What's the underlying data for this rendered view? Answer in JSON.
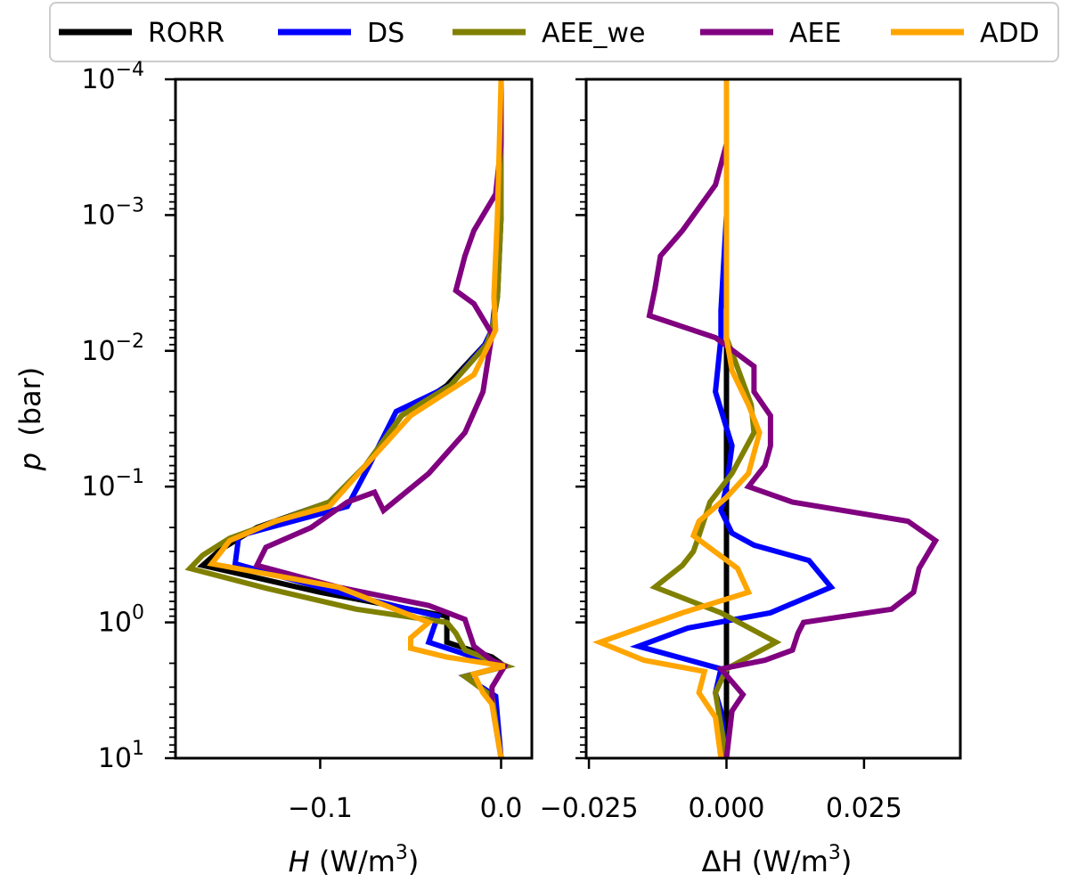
{
  "legend": [
    {
      "name": "RORR",
      "color": "#000000"
    },
    {
      "name": "DS",
      "color": "#0000ff"
    },
    {
      "name": "AEE_we",
      "color": "#808000"
    },
    {
      "name": "AEE",
      "color": "#800080"
    },
    {
      "name": "ADD",
      "color": "#ffa500"
    }
  ],
  "yaxis": {
    "label_var": "p",
    "label_unit": "(bar)",
    "scale": "log",
    "inverted": true,
    "ylim": [
      0.0001,
      10
    ],
    "ticks": [
      {
        "value": 0.0001,
        "base": "10",
        "exp": "−4"
      },
      {
        "value": 0.001,
        "base": "10",
        "exp": "−3"
      },
      {
        "value": 0.01,
        "base": "10",
        "exp": "−2"
      },
      {
        "value": 0.1,
        "base": "10",
        "exp": "−1"
      },
      {
        "value": 1,
        "base": "10",
        "exp": "0"
      },
      {
        "value": 10,
        "base": "10",
        "exp": "1"
      }
    ]
  },
  "chart_data": [
    {
      "type": "line",
      "id": "left",
      "xlabel_var": "H",
      "xlabel_unit": " (W/m",
      "xlabel_exp": "3",
      "xlabel_close": ")",
      "xlim": [
        -0.18,
        0.017
      ],
      "xticks": [
        {
          "value": -0.1,
          "label": "−0.1"
        },
        {
          "value": 0.0,
          "label": "0.0"
        }
      ],
      "series": [
        {
          "name": "RORR",
          "points": [
            [
              0.0,
              0.0001
            ],
            [
              0.0,
              0.001
            ],
            [
              -0.002,
              0.004
            ],
            [
              -0.005,
              0.007
            ],
            [
              -0.009,
              0.009
            ],
            [
              -0.03,
              0.018
            ],
            [
              -0.055,
              0.03
            ],
            [
              -0.075,
              0.07
            ],
            [
              -0.095,
              0.13
            ],
            [
              -0.135,
              0.2
            ],
            [
              -0.155,
              0.29
            ],
            [
              -0.165,
              0.38
            ],
            [
              -0.1,
              0.6
            ],
            [
              -0.03,
              0.9
            ],
            [
              -0.03,
              1.1
            ],
            [
              -0.03,
              1.4
            ],
            [
              -0.005,
              1.8
            ],
            [
              0.002,
              2.1
            ],
            [
              -0.02,
              2.5
            ],
            [
              -0.005,
              3.5
            ],
            [
              0.0,
              10
            ]
          ]
        },
        {
          "name": "DS",
          "points": [
            [
              0.0,
              0.0001
            ],
            [
              0.0,
              0.001
            ],
            [
              -0.003,
              0.004
            ],
            [
              -0.005,
              0.007
            ],
            [
              -0.009,
              0.009
            ],
            [
              -0.028,
              0.018
            ],
            [
              -0.058,
              0.028
            ],
            [
              -0.073,
              0.07
            ],
            [
              -0.085,
              0.14
            ],
            [
              -0.145,
              0.23
            ],
            [
              -0.147,
              0.37
            ],
            [
              -0.09,
              0.6
            ],
            [
              -0.035,
              0.9
            ],
            [
              -0.04,
              1.4
            ],
            [
              -0.015,
              1.8
            ],
            [
              0.002,
              2.1
            ],
            [
              -0.02,
              2.5
            ],
            [
              -0.003,
              3.5
            ],
            [
              0.0,
              10
            ]
          ]
        },
        {
          "name": "AEE_we",
          "points": [
            [
              0.0,
              0.0001
            ],
            [
              0.0,
              0.001
            ],
            [
              -0.002,
              0.004
            ],
            [
              -0.005,
              0.007
            ],
            [
              -0.008,
              0.009
            ],
            [
              -0.028,
              0.018
            ],
            [
              -0.055,
              0.03
            ],
            [
              -0.075,
              0.07
            ],
            [
              -0.095,
              0.13
            ],
            [
              -0.15,
              0.24
            ],
            [
              -0.165,
              0.32
            ],
            [
              -0.172,
              0.4
            ],
            [
              -0.13,
              0.56
            ],
            [
              -0.08,
              0.8
            ],
            [
              -0.03,
              1.0
            ],
            [
              -0.025,
              1.2
            ],
            [
              -0.02,
              1.6
            ],
            [
              0.003,
              2.1
            ],
            [
              -0.02,
              2.5
            ],
            [
              -0.005,
              3.5
            ],
            [
              0.0,
              10
            ]
          ]
        },
        {
          "name": "AEE",
          "points": [
            [
              0.0,
              0.0001
            ],
            [
              0.0,
              0.0003
            ],
            [
              -0.003,
              0.0007
            ],
            [
              -0.015,
              0.0013
            ],
            [
              -0.02,
              0.002
            ],
            [
              -0.025,
              0.0036
            ],
            [
              -0.015,
              0.0045
            ],
            [
              -0.005,
              0.0075
            ],
            [
              -0.01,
              0.02
            ],
            [
              -0.02,
              0.04
            ],
            [
              -0.04,
              0.08
            ],
            [
              -0.065,
              0.15
            ],
            [
              -0.07,
              0.11
            ],
            [
              -0.085,
              0.13
            ],
            [
              -0.105,
              0.2
            ],
            [
              -0.13,
              0.28
            ],
            [
              -0.135,
              0.38
            ],
            [
              -0.09,
              0.55
            ],
            [
              -0.04,
              0.75
            ],
            [
              -0.02,
              0.95
            ],
            [
              -0.015,
              1.5
            ],
            [
              -0.005,
              1.9
            ],
            [
              0.002,
              2.1
            ],
            [
              -0.005,
              3
            ],
            [
              -0.005,
              4
            ],
            [
              0.0,
              10
            ]
          ]
        },
        {
          "name": "ADD",
          "points": [
            [
              0.0,
              0.0001
            ],
            [
              -0.002,
              0.001
            ],
            [
              -0.004,
              0.004
            ],
            [
              -0.003,
              0.007
            ],
            [
              -0.005,
              0.008
            ],
            [
              -0.015,
              0.015
            ],
            [
              -0.05,
              0.03
            ],
            [
              -0.075,
              0.07
            ],
            [
              -0.095,
              0.14
            ],
            [
              -0.125,
              0.18
            ],
            [
              -0.15,
              0.25
            ],
            [
              -0.16,
              0.37
            ],
            [
              -0.09,
              0.55
            ],
            [
              -0.04,
              1.0
            ],
            [
              -0.05,
              1.3
            ],
            [
              -0.05,
              1.55
            ],
            [
              -0.03,
              1.8
            ],
            [
              0.002,
              2.1
            ],
            [
              -0.015,
              2.4
            ],
            [
              -0.01,
              3.3
            ],
            [
              -0.005,
              4
            ],
            [
              0.0,
              10
            ]
          ]
        }
      ]
    },
    {
      "type": "line",
      "id": "right",
      "xlabel_var": "ΔH",
      "xlabel_unit": " (W/m",
      "xlabel_exp": "3",
      "xlabel_close": ")",
      "xlim": [
        -0.0255,
        0.0425
      ],
      "xticks": [
        {
          "value": -0.025,
          "label": "−0.025"
        },
        {
          "value": 0.0,
          "label": "0.000"
        },
        {
          "value": 0.025,
          "label": "0.025"
        }
      ],
      "series": [
        {
          "name": "RORR",
          "points": [
            [
              0.0,
              0.0001
            ],
            [
              0.0,
              10
            ]
          ]
        },
        {
          "name": "DS",
          "points": [
            [
              0.0,
              0.0001
            ],
            [
              0.0,
              0.001
            ],
            [
              -0.001,
              0.005
            ],
            [
              -0.001,
              0.008
            ],
            [
              -0.002,
              0.02
            ],
            [
              0.001,
              0.05
            ],
            [
              0.0,
              0.1
            ],
            [
              -0.001,
              0.15
            ],
            [
              0.001,
              0.22
            ],
            [
              0.005,
              0.27
            ],
            [
              0.015,
              0.35
            ],
            [
              0.019,
              0.55
            ],
            [
              0.008,
              0.85
            ],
            [
              -0.007,
              1.1
            ],
            [
              -0.016,
              1.5
            ],
            [
              -0.001,
              2.2
            ],
            [
              -0.002,
              3.3
            ],
            [
              -0.001,
              4.5
            ],
            [
              0.0,
              10
            ]
          ]
        },
        {
          "name": "AEE_we",
          "points": [
            [
              0.0,
              0.0001
            ],
            [
              0.0,
              0.001
            ],
            [
              0.0,
              0.008
            ],
            [
              0.0045,
              0.025
            ],
            [
              0.005,
              0.04
            ],
            [
              0.001,
              0.08
            ],
            [
              -0.003,
              0.13
            ],
            [
              -0.005,
              0.23
            ],
            [
              -0.006,
              0.3
            ],
            [
              -0.008,
              0.38
            ],
            [
              -0.013,
              0.55
            ],
            [
              -0.001,
              0.85
            ],
            [
              0.009,
              1.4
            ],
            [
              0.0,
              2.2
            ],
            [
              -0.002,
              3.3
            ],
            [
              0.0,
              10
            ]
          ]
        },
        {
          "name": "AEE",
          "points": [
            [
              0.0,
              0.0001
            ],
            [
              0.0,
              0.0003
            ],
            [
              -0.002,
              0.0006
            ],
            [
              -0.008,
              0.0013
            ],
            [
              -0.012,
              0.002
            ],
            [
              -0.013,
              0.0035
            ],
            [
              -0.014,
              0.0055
            ],
            [
              -0.002,
              0.008
            ],
            [
              0.005,
              0.013
            ],
            [
              0.005,
              0.02
            ],
            [
              0.008,
              0.03
            ],
            [
              0.008,
              0.05
            ],
            [
              0.007,
              0.07
            ],
            [
              0.004,
              0.1
            ],
            [
              0.012,
              0.13
            ],
            [
              0.033,
              0.18
            ],
            [
              0.038,
              0.25
            ],
            [
              0.035,
              0.4
            ],
            [
              0.034,
              0.6
            ],
            [
              0.03,
              0.8
            ],
            [
              0.014,
              1.0
            ],
            [
              0.013,
              1.2
            ],
            [
              0.012,
              1.6
            ],
            [
              0.007,
              1.9
            ],
            [
              -0.001,
              2.2
            ],
            [
              0.003,
              3.4
            ],
            [
              0.001,
              4.5
            ],
            [
              0.0,
              10
            ]
          ]
        },
        {
          "name": "ADD",
          "points": [
            [
              0.0,
              0.0001
            ],
            [
              0.0,
              0.001
            ],
            [
              0.0,
              0.008
            ],
            [
              0.001,
              0.014
            ],
            [
              0.004,
              0.025
            ],
            [
              0.006,
              0.04
            ],
            [
              0.004,
              0.08
            ],
            [
              0.0,
              0.12
            ],
            [
              -0.005,
              0.18
            ],
            [
              -0.006,
              0.23
            ],
            [
              0.002,
              0.4
            ],
            [
              0.004,
              0.6
            ],
            [
              -0.008,
              0.85
            ],
            [
              -0.023,
              1.4
            ],
            [
              -0.015,
              1.9
            ],
            [
              -0.004,
              2.3
            ],
            [
              -0.005,
              3.3
            ],
            [
              -0.002,
              5
            ],
            [
              -0.001,
              10
            ]
          ]
        }
      ]
    }
  ]
}
